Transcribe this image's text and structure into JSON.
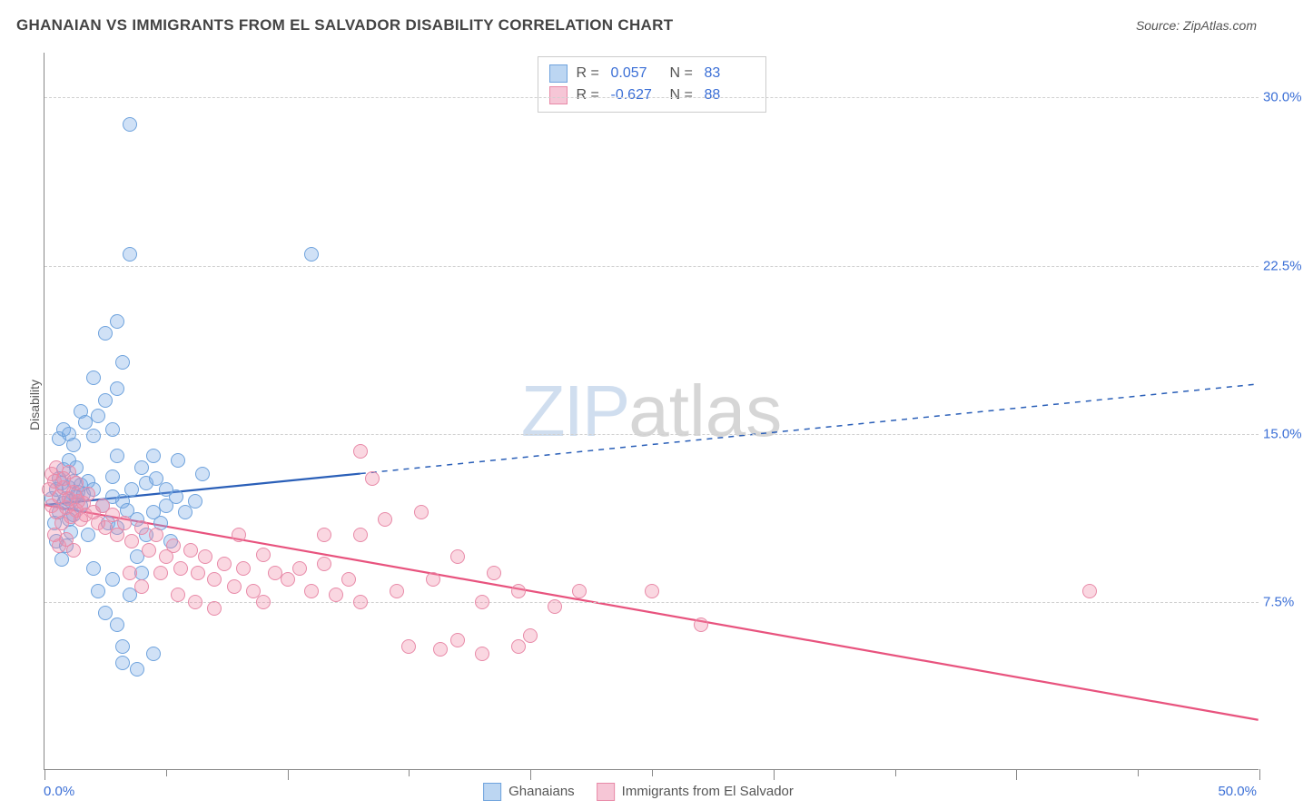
{
  "chart": {
    "type": "scatter",
    "title": "GHANAIAN VS IMMIGRANTS FROM EL SALVADOR DISABILITY CORRELATION CHART",
    "source_label": "Source: ZipAtlas.com",
    "ylabel": "Disability",
    "watermark": {
      "part1": "ZIP",
      "part2": "atlas"
    },
    "background_color": "#ffffff",
    "grid_color": "#d0d0d0",
    "axis_color": "#888888",
    "text_color": "#555555",
    "value_color": "#3b6fd6",
    "xlim": [
      0,
      50
    ],
    "ylim": [
      0,
      32
    ],
    "x_ticks": [
      0,
      5,
      10,
      15,
      20,
      25,
      30,
      35,
      40,
      45,
      50
    ],
    "x_major_ticks": [
      0,
      10,
      20,
      30,
      40,
      50
    ],
    "y_ticks": [
      7.5,
      15.0,
      22.5,
      30.0
    ],
    "x_tick_labels": {
      "min": "0.0%",
      "max": "50.0%"
    },
    "y_tick_labels": [
      "7.5%",
      "15.0%",
      "22.5%",
      "30.0%"
    ],
    "marker_radius": 8,
    "marker_border_width": 1.5,
    "series": [
      {
        "name": "Ghanaians",
        "fill_color": "rgba(120,170,230,0.35)",
        "border_color": "#6fa3dd",
        "legend_swatch_fill": "#bcd6f2",
        "legend_swatch_border": "#6fa3dd",
        "R": "0.057",
        "N": "83",
        "trend": {
          "solid": {
            "x1": 0,
            "y1": 11.8,
            "x2": 13,
            "y2": 13.2
          },
          "dashed": {
            "x1": 13,
            "y1": 13.2,
            "x2": 50,
            "y2": 17.2
          },
          "color": "#2a5fb8",
          "width_solid": 2.2,
          "width_dashed": 1.5
        },
        "points": [
          [
            0.3,
            12.1
          ],
          [
            0.4,
            11.0
          ],
          [
            0.5,
            12.5
          ],
          [
            0.5,
            10.2
          ],
          [
            0.6,
            13.0
          ],
          [
            0.6,
            11.5
          ],
          [
            0.7,
            12.8
          ],
          [
            0.7,
            9.4
          ],
          [
            0.8,
            11.9
          ],
          [
            0.8,
            13.4
          ],
          [
            0.9,
            12.1
          ],
          [
            0.9,
            10.0
          ],
          [
            1.0,
            12.6
          ],
          [
            1.0,
            11.2
          ],
          [
            1.0,
            13.8
          ],
          [
            1.1,
            12.0
          ],
          [
            1.1,
            10.6
          ],
          [
            1.2,
            12.9
          ],
          [
            1.2,
            11.4
          ],
          [
            1.3,
            12.2
          ],
          [
            1.3,
            13.5
          ],
          [
            1.4,
            12.4
          ],
          [
            1.5,
            11.8
          ],
          [
            1.5,
            12.7
          ],
          [
            1.6,
            12.3
          ],
          [
            1.8,
            12.9
          ],
          [
            2.0,
            12.5
          ],
          [
            0.6,
            14.8
          ],
          [
            0.8,
            15.2
          ],
          [
            1.0,
            15.0
          ],
          [
            1.2,
            14.5
          ],
          [
            1.5,
            16.0
          ],
          [
            1.7,
            15.5
          ],
          [
            2.0,
            14.9
          ],
          [
            2.2,
            15.8
          ],
          [
            2.5,
            16.5
          ],
          [
            2.8,
            15.2
          ],
          [
            3.0,
            17.0
          ],
          [
            3.0,
            14.0
          ],
          [
            2.0,
            17.5
          ],
          [
            2.5,
            19.5
          ],
          [
            3.0,
            20.0
          ],
          [
            3.5,
            23.0
          ],
          [
            3.2,
            18.2
          ],
          [
            2.8,
            13.1
          ],
          [
            3.2,
            12.0
          ],
          [
            1.8,
            10.5
          ],
          [
            2.0,
            9.0
          ],
          [
            2.2,
            8.0
          ],
          [
            2.5,
            7.0
          ],
          [
            2.8,
            8.5
          ],
          [
            3.0,
            6.5
          ],
          [
            3.2,
            5.5
          ],
          [
            3.5,
            7.8
          ],
          [
            3.8,
            9.5
          ],
          [
            4.0,
            8.8
          ],
          [
            4.2,
            10.5
          ],
          [
            4.5,
            11.5
          ],
          [
            3.2,
            4.8
          ],
          [
            3.8,
            4.5
          ],
          [
            4.5,
            5.2
          ],
          [
            3.5,
            28.8
          ],
          [
            11.0,
            23.0
          ],
          [
            4.0,
            13.5
          ],
          [
            4.5,
            14.0
          ],
          [
            5.0,
            12.5
          ],
          [
            5.5,
            13.8
          ],
          [
            4.8,
            11.0
          ],
          [
            5.2,
            10.2
          ],
          [
            2.4,
            11.8
          ],
          [
            2.6,
            11.0
          ],
          [
            2.8,
            12.2
          ],
          [
            3.0,
            10.8
          ],
          [
            3.4,
            11.6
          ],
          [
            3.6,
            12.5
          ],
          [
            3.8,
            11.2
          ],
          [
            4.2,
            12.8
          ],
          [
            4.6,
            13.0
          ],
          [
            5.0,
            11.8
          ],
          [
            5.4,
            12.2
          ],
          [
            5.8,
            11.5
          ],
          [
            6.2,
            12.0
          ],
          [
            6.5,
            13.2
          ]
        ]
      },
      {
        "name": "Immigrants from El Salvador",
        "fill_color": "rgba(240,140,170,0.35)",
        "border_color": "#e88aa8",
        "legend_swatch_fill": "#f6c6d6",
        "legend_swatch_border": "#e88aa8",
        "R": "-0.627",
        "N": "88",
        "trend": {
          "solid": {
            "x1": 0,
            "y1": 11.8,
            "x2": 50,
            "y2": 2.2
          },
          "dashed": null,
          "color": "#e8537e",
          "width_solid": 2.2
        },
        "points": [
          [
            0.2,
            12.5
          ],
          [
            0.3,
            11.8
          ],
          [
            0.4,
            12.9
          ],
          [
            0.5,
            11.5
          ],
          [
            0.6,
            12.2
          ],
          [
            0.7,
            11.0
          ],
          [
            0.8,
            12.6
          ],
          [
            0.9,
            11.7
          ],
          [
            1.0,
            12.1
          ],
          [
            1.1,
            11.3
          ],
          [
            1.2,
            12.4
          ],
          [
            1.3,
            11.6
          ],
          [
            1.4,
            12.0
          ],
          [
            1.5,
            11.2
          ],
          [
            1.6,
            11.9
          ],
          [
            1.7,
            11.4
          ],
          [
            1.8,
            12.3
          ],
          [
            2.0,
            11.5
          ],
          [
            2.2,
            11.0
          ],
          [
            2.4,
            11.8
          ],
          [
            0.3,
            13.2
          ],
          [
            0.5,
            13.5
          ],
          [
            0.8,
            13.0
          ],
          [
            1.0,
            13.3
          ],
          [
            1.3,
            12.8
          ],
          [
            0.4,
            10.5
          ],
          [
            0.6,
            10.0
          ],
          [
            0.9,
            10.3
          ],
          [
            1.2,
            9.8
          ],
          [
            2.5,
            10.8
          ],
          [
            2.8,
            11.4
          ],
          [
            3.0,
            10.5
          ],
          [
            3.3,
            11.0
          ],
          [
            3.6,
            10.2
          ],
          [
            4.0,
            10.8
          ],
          [
            4.3,
            9.8
          ],
          [
            4.6,
            10.5
          ],
          [
            5.0,
            9.5
          ],
          [
            5.3,
            10.0
          ],
          [
            5.6,
            9.0
          ],
          [
            6.0,
            9.8
          ],
          [
            6.3,
            8.8
          ],
          [
            6.6,
            9.5
          ],
          [
            7.0,
            8.5
          ],
          [
            7.4,
            9.2
          ],
          [
            7.8,
            8.2
          ],
          [
            8.2,
            9.0
          ],
          [
            8.6,
            8.0
          ],
          [
            9.0,
            9.6
          ],
          [
            9.5,
            8.8
          ],
          [
            10.0,
            8.5
          ],
          [
            10.5,
            9.0
          ],
          [
            11.0,
            8.0
          ],
          [
            11.5,
            9.2
          ],
          [
            12.0,
            7.8
          ],
          [
            12.5,
            8.5
          ],
          [
            13.0,
            7.5
          ],
          [
            13.0,
            14.2
          ],
          [
            13.5,
            13.0
          ],
          [
            13.0,
            10.5
          ],
          [
            14.0,
            11.2
          ],
          [
            14.5,
            8.0
          ],
          [
            15.0,
            5.5
          ],
          [
            15.5,
            11.5
          ],
          [
            16.0,
            8.5
          ],
          [
            16.3,
            5.4
          ],
          [
            17.0,
            9.5
          ],
          [
            17.0,
            5.8
          ],
          [
            18.0,
            7.5
          ],
          [
            18.0,
            5.2
          ],
          [
            18.5,
            8.8
          ],
          [
            19.5,
            8.0
          ],
          [
            20.0,
            6.0
          ],
          [
            19.5,
            5.5
          ],
          [
            21.0,
            7.3
          ],
          [
            22.0,
            8.0
          ],
          [
            25.0,
            8.0
          ],
          [
            27.0,
            6.5
          ],
          [
            43.0,
            8.0
          ],
          [
            3.5,
            8.8
          ],
          [
            4.0,
            8.2
          ],
          [
            4.8,
            8.8
          ],
          [
            5.5,
            7.8
          ],
          [
            6.2,
            7.5
          ],
          [
            7.0,
            7.2
          ],
          [
            8.0,
            10.5
          ],
          [
            9.0,
            7.5
          ],
          [
            11.5,
            10.5
          ]
        ]
      }
    ],
    "legend_bottom": [
      {
        "label": "Ghanaians",
        "fill": "#bcd6f2",
        "border": "#6fa3dd"
      },
      {
        "label": "Immigrants from El Salvador",
        "fill": "#f6c6d6",
        "border": "#e88aa8"
      }
    ]
  }
}
